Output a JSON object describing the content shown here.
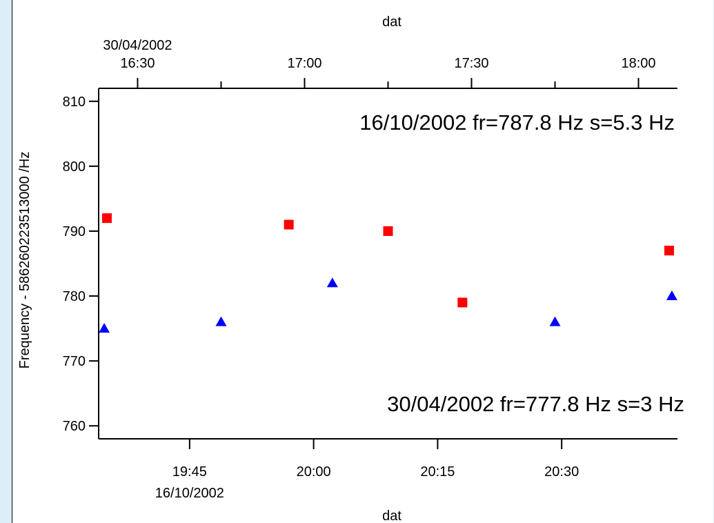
{
  "chart_data": {
    "type": "scatter",
    "y_axis": {
      "label": "Frequency - 586260223513000  /Hz",
      "range": [
        758,
        812
      ],
      "ticks": [
        760,
        770,
        780,
        790,
        800,
        810
      ]
    },
    "x_axis_top": {
      "label": "dat",
      "series": "30/04/2002",
      "range": [
        "16:23",
        "18:07"
      ],
      "ticks": [
        "16:30",
        "17:00",
        "17:30",
        "18:00"
      ],
      "minor_ticks": [
        "16:45",
        "17:15",
        "17:45"
      ],
      "first_tick_date": "30/04/2002"
    },
    "x_axis_bottom": {
      "label": "dat",
      "series": "16/10/2002",
      "range": [
        "19:34",
        "20:44"
      ],
      "ticks": [
        "19:45",
        "20:00",
        "20:15",
        "20:30"
      ],
      "first_tick_date": "16/10/2002"
    },
    "series": [
      {
        "name": "16/10/2002",
        "axis": "bottom",
        "marker": "square",
        "color": "#ff0000",
        "annotation": "16/10/2002  fr=787.8 Hz s=5.3 Hz",
        "annotation_position": "top-right",
        "points": [
          {
            "x": "19:35",
            "y": 792
          },
          {
            "x": "19:57",
            "y": 791
          },
          {
            "x": "20:09",
            "y": 790
          },
          {
            "x": "20:18",
            "y": 779
          },
          {
            "x": "20:43",
            "y": 787
          }
        ]
      },
      {
        "name": "30/04/2002",
        "axis": "top",
        "marker": "triangle",
        "color": "#0000ff",
        "annotation": "30/04/2002 fr=777.8 Hz  s=3 Hz",
        "annotation_position": "bottom-right",
        "points": [
          {
            "x": "16:24",
            "y": 775
          },
          {
            "x": "16:45",
            "y": 776
          },
          {
            "x": "17:05",
            "y": 782
          },
          {
            "x": "17:45",
            "y": 776
          },
          {
            "x": "18:06",
            "y": 780
          }
        ]
      }
    ]
  }
}
